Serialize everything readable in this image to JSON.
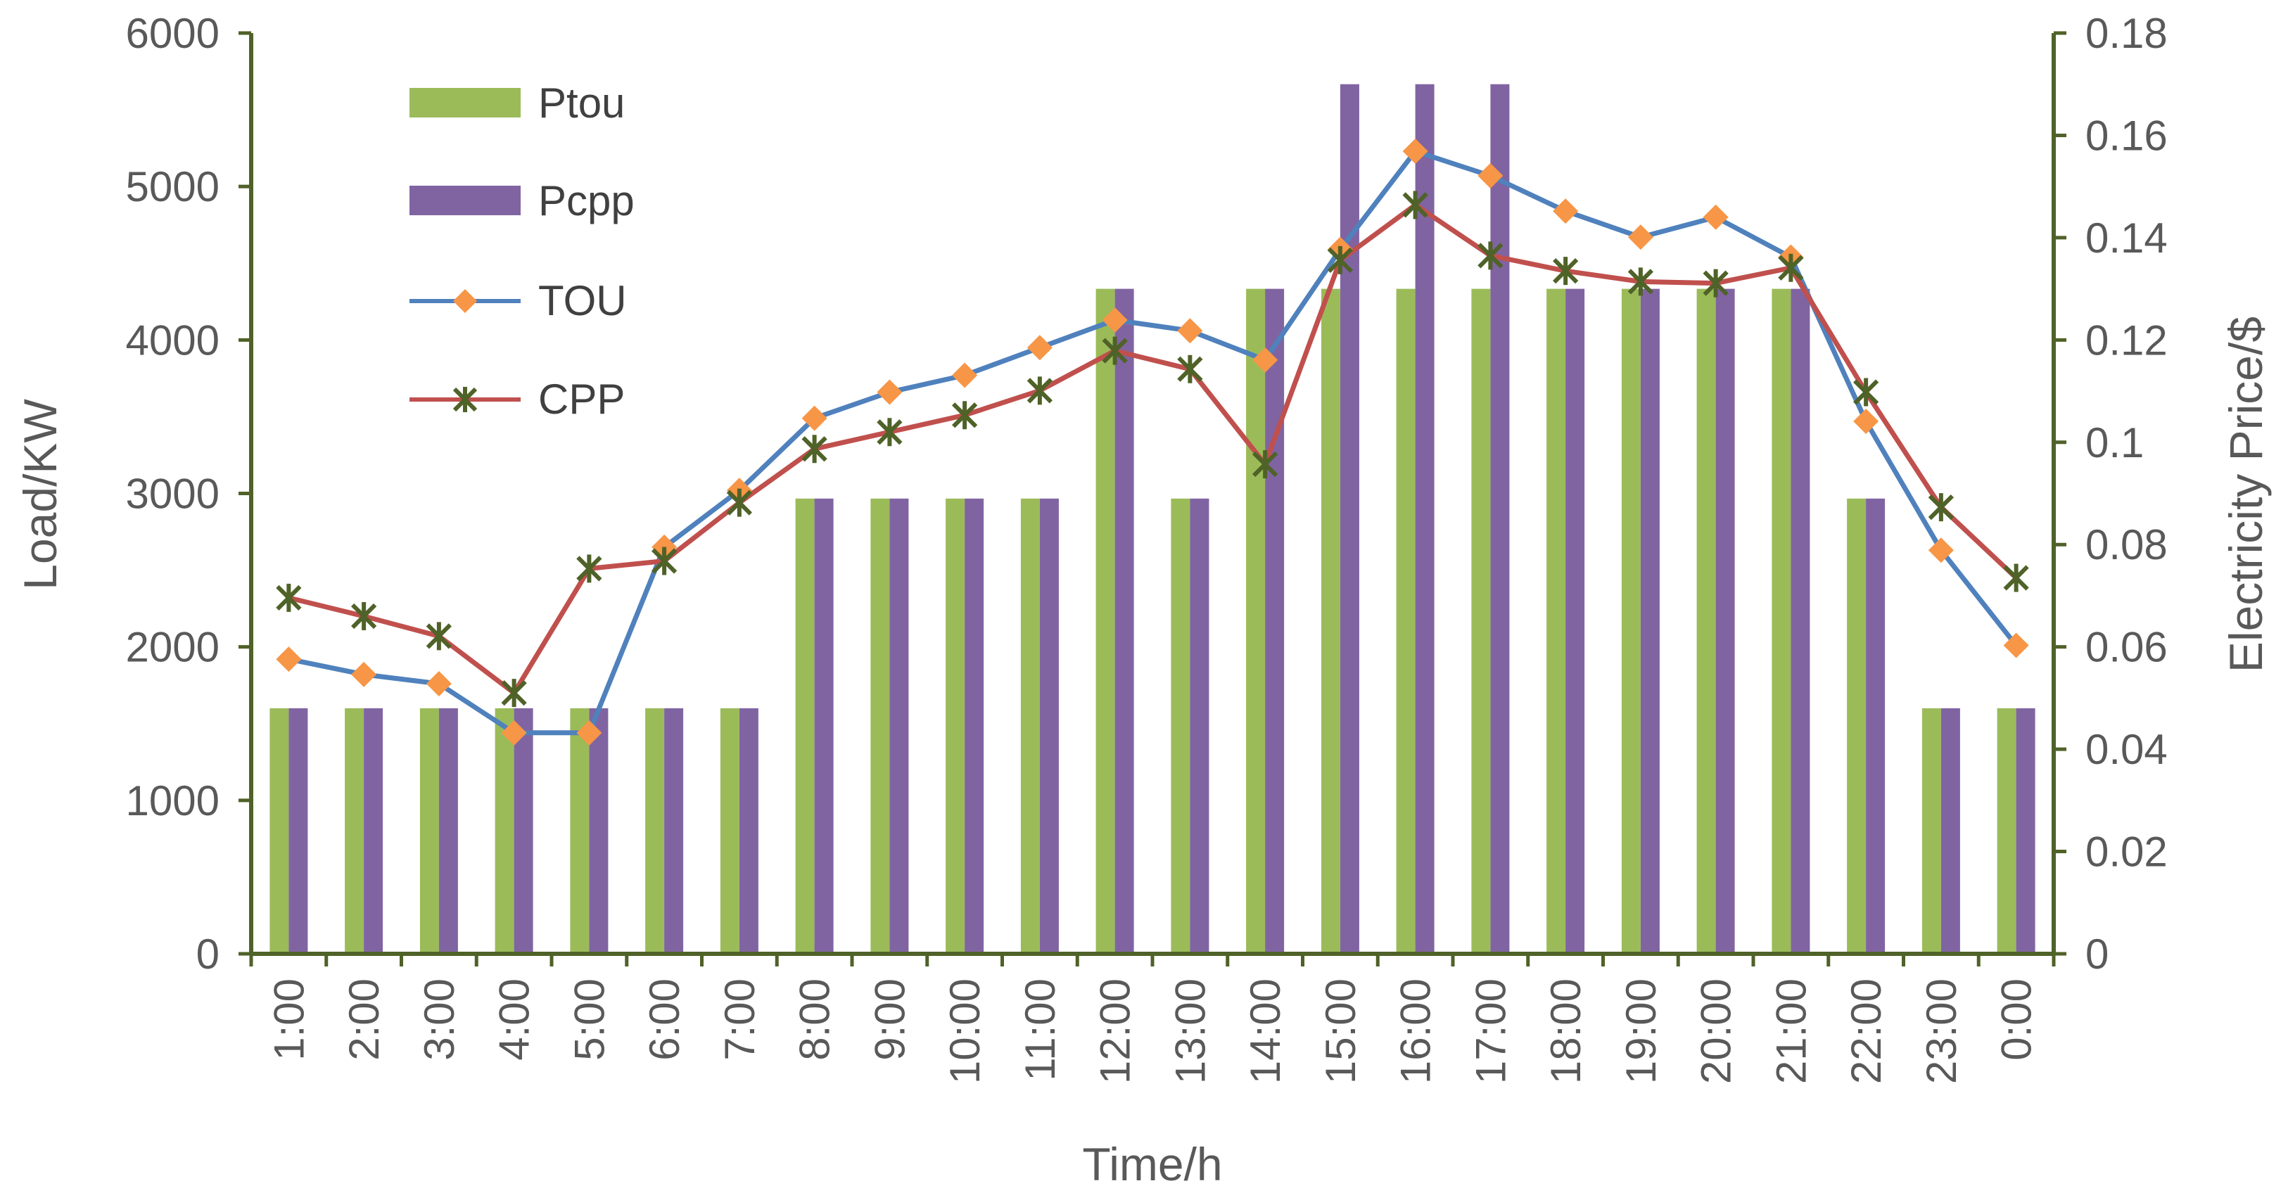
{
  "chart_data": {
    "type": "bar+line",
    "title": "",
    "xlabel": "Time/h",
    "ylabel_left": "Load/KW",
    "ylabel_right": "Electricity Price/$",
    "categories": [
      "1:00",
      "2:00",
      "3:00",
      "4:00",
      "5:00",
      "6:00",
      "7:00",
      "8:00",
      "9:00",
      "10:00",
      "11:00",
      "12:00",
      "13:00",
      "14:00",
      "15:00",
      "16:00",
      "17:00",
      "18:00",
      "19:00",
      "20:00",
      "21:00",
      "22:00",
      "23:00",
      "0:00"
    ],
    "ylim_left": [
      0,
      6000
    ],
    "yticks_left": [
      "0",
      "1000",
      "2000",
      "3000",
      "4000",
      "5000",
      "6000"
    ],
    "ylim_right": [
      0,
      0.18
    ],
    "yticks_right": [
      "0",
      "0.02",
      "0.04",
      "0.06",
      "0.08",
      "0.1",
      "0.12",
      "0.14",
      "0.16",
      "0.18"
    ],
    "bar_series": [
      {
        "name": "Ptou",
        "axis": "right",
        "color": "#9bbb59",
        "values": [
          0.048,
          0.048,
          0.048,
          0.048,
          0.048,
          0.048,
          0.048,
          0.089,
          0.089,
          0.089,
          0.089,
          0.13,
          0.089,
          0.13,
          0.13,
          0.13,
          0.13,
          0.13,
          0.13,
          0.13,
          0.13,
          0.089,
          0.048,
          0.048
        ]
      },
      {
        "name": "Pcpp",
        "axis": "right",
        "color": "#8064a2",
        "values": [
          0.048,
          0.048,
          0.048,
          0.048,
          0.048,
          0.048,
          0.048,
          0.089,
          0.089,
          0.089,
          0.089,
          0.13,
          0.089,
          0.13,
          0.17,
          0.17,
          0.17,
          0.13,
          0.13,
          0.13,
          0.13,
          0.089,
          0.048,
          0.048
        ]
      }
    ],
    "line_series": [
      {
        "name": "TOU",
        "axis": "left",
        "color": "#4f81bd",
        "marker": "diamond",
        "marker_color": "#f79646",
        "values": [
          1920,
          1820,
          1760,
          1440,
          1440,
          2650,
          3020,
          3490,
          3660,
          3770,
          3950,
          4130,
          4060,
          3870,
          4590,
          5230,
          5070,
          4840,
          4670,
          4800,
          4540,
          3470,
          2630,
          2010
        ]
      },
      {
        "name": "CPP",
        "axis": "left",
        "color": "#c0504d",
        "marker": "star",
        "marker_color": "#4f6228",
        "values": [
          2320,
          2200,
          2070,
          1700,
          2510,
          2560,
          2940,
          3290,
          3400,
          3510,
          3670,
          3930,
          3810,
          3190,
          4520,
          4880,
          4550,
          4450,
          4380,
          4370,
          4470,
          3660,
          2910,
          2450
        ]
      }
    ],
    "legend": [
      "Ptou",
      "Pcpp",
      "TOU",
      "CPP"
    ],
    "legend_position": "top-left",
    "grid": false
  }
}
